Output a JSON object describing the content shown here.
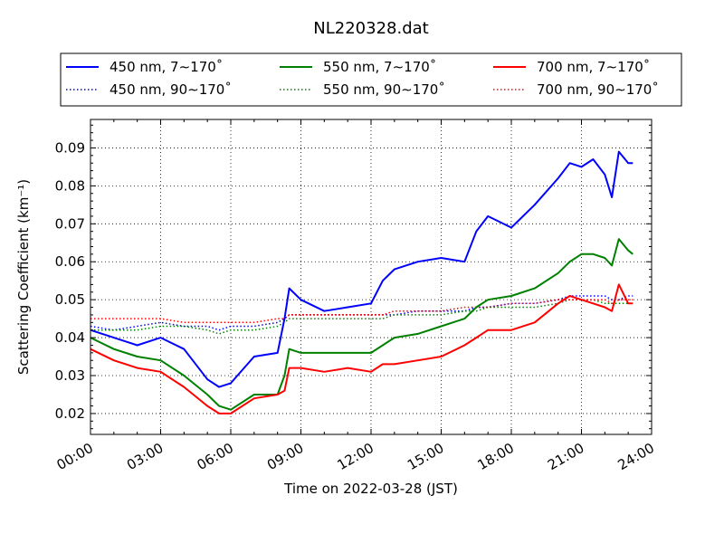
{
  "chart_data": {
    "type": "line",
    "title": "NL220328.dat",
    "xlabel": "Time on 2022-03-28 (JST)",
    "ylabel": "Scattering Coefficient (km⁻¹)",
    "xlim": [
      "00:00",
      "24:00"
    ],
    "ylim": [
      0.0145,
      0.0975
    ],
    "grid": true,
    "legend_position": "top-center, above plot",
    "x_ticks": [
      "00:00",
      "03:00",
      "06:00",
      "09:00",
      "12:00",
      "15:00",
      "18:00",
      "21:00",
      "24:00"
    ],
    "y_ticks": [
      "0.02",
      "0.03",
      "0.04",
      "0.05",
      "0.06",
      "0.07",
      "0.08",
      "0.09"
    ],
    "x_hours": [
      0,
      1,
      2,
      3,
      4,
      5,
      5.5,
      6,
      7,
      8,
      8.3,
      8.5,
      9,
      10,
      11,
      12,
      12.5,
      13,
      14,
      15,
      16,
      16.5,
      17,
      18,
      19,
      20,
      20.5,
      21,
      21.5,
      22,
      22.3,
      22.6,
      23,
      23.2
    ],
    "series": [
      {
        "name": "450 nm, 7∼170˚",
        "color": "#0000ff",
        "style": "solid",
        "values": [
          0.042,
          0.04,
          0.038,
          0.04,
          0.037,
          0.029,
          0.027,
          0.028,
          0.035,
          0.036,
          0.045,
          0.053,
          0.05,
          0.047,
          0.048,
          0.049,
          0.055,
          0.058,
          0.06,
          0.061,
          0.06,
          0.068,
          0.072,
          0.069,
          0.075,
          0.082,
          0.086,
          0.085,
          0.087,
          0.083,
          0.077,
          0.089,
          0.086,
          0.086
        ]
      },
      {
        "name": "450 nm, 90∼170˚",
        "color": "#0000ff",
        "style": "dotted",
        "values": [
          0.043,
          0.042,
          0.043,
          0.044,
          0.043,
          0.043,
          0.042,
          0.043,
          0.043,
          0.044,
          0.045,
          0.046,
          0.046,
          0.046,
          0.046,
          0.046,
          0.046,
          0.046,
          0.047,
          0.047,
          0.047,
          0.048,
          0.048,
          0.049,
          0.049,
          0.05,
          0.051,
          0.051,
          0.051,
          0.051,
          0.05,
          0.05,
          0.051,
          0.051
        ]
      },
      {
        "name": "550 nm, 7∼170˚",
        "color": "#008000",
        "style": "solid",
        "values": [
          0.04,
          0.037,
          0.035,
          0.034,
          0.03,
          0.025,
          0.022,
          0.021,
          0.025,
          0.025,
          0.03,
          0.037,
          0.036,
          0.036,
          0.036,
          0.036,
          0.038,
          0.04,
          0.041,
          0.043,
          0.045,
          0.048,
          0.05,
          0.051,
          0.053,
          0.057,
          0.06,
          0.062,
          0.062,
          0.061,
          0.059,
          0.066,
          0.063,
          0.062
        ]
      },
      {
        "name": "550 nm, 90∼170˚",
        "color": "#008000",
        "style": "dotted",
        "values": [
          0.042,
          0.042,
          0.042,
          0.043,
          0.043,
          0.042,
          0.041,
          0.042,
          0.042,
          0.043,
          0.044,
          0.045,
          0.045,
          0.045,
          0.045,
          0.045,
          0.045,
          0.046,
          0.046,
          0.046,
          0.047,
          0.047,
          0.048,
          0.048,
          0.048,
          0.049,
          0.05,
          0.05,
          0.05,
          0.049,
          0.049,
          0.049,
          0.049,
          0.049
        ]
      },
      {
        "name": "700 nm, 7∼170˚",
        "color": "#ff0000",
        "style": "solid",
        "values": [
          0.037,
          0.034,
          0.032,
          0.031,
          0.027,
          0.022,
          0.02,
          0.02,
          0.024,
          0.025,
          0.026,
          0.032,
          0.032,
          0.031,
          0.032,
          0.031,
          0.033,
          0.033,
          0.034,
          0.035,
          0.038,
          0.04,
          0.042,
          0.042,
          0.044,
          0.049,
          0.051,
          0.05,
          0.049,
          0.048,
          0.047,
          0.054,
          0.049,
          0.049
        ]
      },
      {
        "name": "700 nm, 90∼170˚",
        "color": "#ff0000",
        "style": "dotted",
        "values": [
          0.045,
          0.045,
          0.045,
          0.045,
          0.044,
          0.044,
          0.044,
          0.044,
          0.044,
          0.045,
          0.045,
          0.046,
          0.046,
          0.046,
          0.046,
          0.046,
          0.046,
          0.047,
          0.047,
          0.047,
          0.048,
          0.048,
          0.048,
          0.049,
          0.049,
          0.05,
          0.05,
          0.05,
          0.05,
          0.05,
          0.049,
          0.05,
          0.05,
          0.05
        ]
      }
    ]
  }
}
